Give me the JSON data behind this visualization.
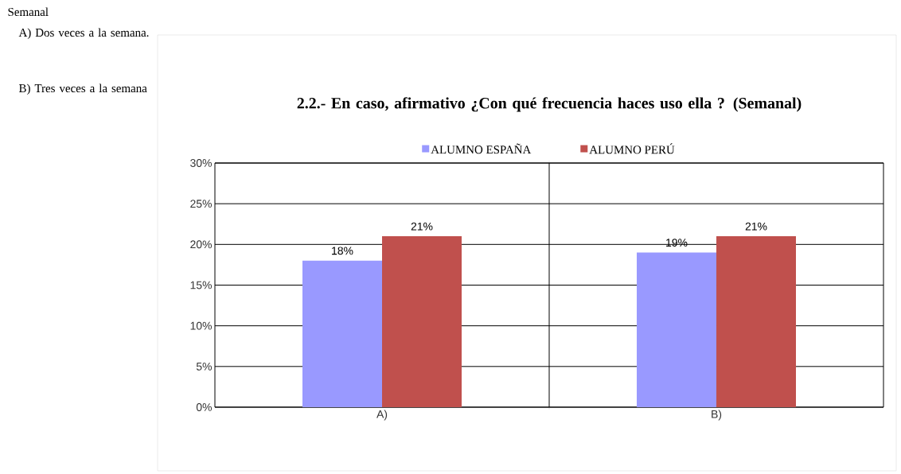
{
  "chart_data": {
    "type": "bar",
    "title": "2.2.- En caso,  afirmativo ¿Con qué  frecuencia haces uso ella ?  (Semanal)",
    "categories": [
      "A)",
      "B)"
    ],
    "series": [
      {
        "name": "ALUMNO ESPAÑA",
        "color": "#9999ff",
        "values": [
          18,
          19
        ],
        "value_labels": [
          "18%",
          "19%"
        ]
      },
      {
        "name": "ALUMNO PERÚ",
        "color": "#c0504d",
        "values": [
          21,
          21
        ],
        "value_labels": [
          "21%",
          "21%"
        ]
      }
    ],
    "ylim": [
      0,
      30
    ],
    "yticks": [
      {
        "value": 0,
        "label": "0%"
      },
      {
        "value": 5,
        "label": "5%"
      },
      {
        "value": 10,
        "label": "10%"
      },
      {
        "value": 15,
        "label": "15%"
      },
      {
        "value": 20,
        "label": "20%"
      },
      {
        "value": 25,
        "label": "25%"
      },
      {
        "value": 30,
        "label": "30%"
      }
    ],
    "grid": "y",
    "legend": "top",
    "annotations": [
      "Semanal",
      "A) Dos veces a la semana.",
      "B) Tres veces a la semana"
    ]
  }
}
